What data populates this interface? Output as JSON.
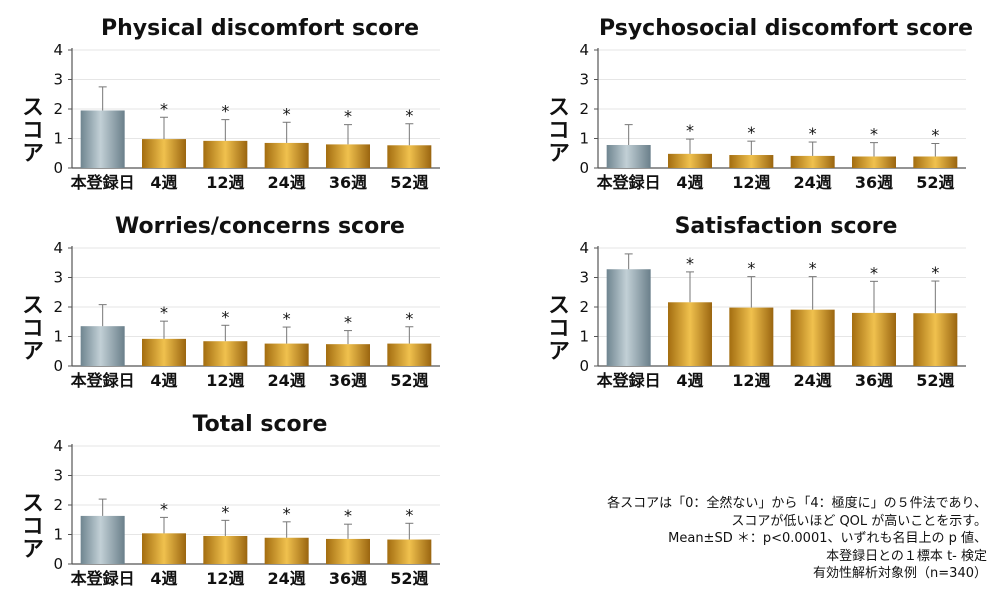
{
  "colors": {
    "baseline_bar": "#90a3ac",
    "followup_bar": "#c8901e",
    "axis": "#555555",
    "grid": "#e6e6e6",
    "error_bar": "#777777"
  },
  "chart_data": [
    {
      "type": "bar",
      "title": "Physical discomfort score",
      "ylabel": "スコア",
      "categories": [
        "本登録日",
        "4週",
        "12週",
        "24週",
        "36週",
        "52週"
      ],
      "values": [
        1.95,
        0.98,
        0.92,
        0.85,
        0.8,
        0.77
      ],
      "error_upper": [
        2.75,
        1.72,
        1.64,
        1.55,
        1.47,
        1.5
      ],
      "significance": [
        "",
        "*",
        "*",
        "*",
        "*",
        "*"
      ],
      "yticks": [
        0,
        1,
        2,
        3,
        4
      ],
      "ylim": [
        0,
        4
      ],
      "grid": true
    },
    {
      "type": "bar",
      "title": "Psychosocial discomfort score",
      "ylabel": "スコア",
      "categories": [
        "本登録日",
        "4週",
        "12週",
        "24週",
        "36週",
        "52週"
      ],
      "values": [
        0.78,
        0.48,
        0.44,
        0.41,
        0.39,
        0.39
      ],
      "error_upper": [
        1.47,
        0.98,
        0.91,
        0.88,
        0.86,
        0.83
      ],
      "significance": [
        "",
        "*",
        "*",
        "*",
        "*",
        "*"
      ],
      "yticks": [
        0,
        1,
        2,
        3,
        4
      ],
      "ylim": [
        0,
        4
      ],
      "grid": true
    },
    {
      "type": "bar",
      "title": "Worries/concerns score",
      "ylabel": "スコア",
      "categories": [
        "本登録日",
        "4週",
        "12週",
        "24週",
        "36週",
        "52週"
      ],
      "values": [
        1.35,
        0.92,
        0.84,
        0.76,
        0.74,
        0.76
      ],
      "error_upper": [
        2.08,
        1.52,
        1.38,
        1.32,
        1.2,
        1.33
      ],
      "significance": [
        "",
        "*",
        "*",
        "*",
        "*",
        "*"
      ],
      "yticks": [
        0,
        1,
        2,
        3,
        4
      ],
      "ylim": [
        0,
        4
      ],
      "grid": true
    },
    {
      "type": "bar",
      "title": "Satisfaction score",
      "ylabel": "スコア",
      "categories": [
        "本登録日",
        "4週",
        "12週",
        "24週",
        "36週",
        "52週"
      ],
      "values": [
        3.28,
        2.16,
        1.98,
        1.91,
        1.8,
        1.79
      ],
      "error_upper": [
        3.8,
        3.19,
        3.03,
        3.03,
        2.87,
        2.88
      ],
      "significance": [
        "",
        "*",
        "*",
        "*",
        "*",
        "*"
      ],
      "yticks": [
        0,
        1,
        2,
        3,
        4
      ],
      "ylim": [
        0,
        4
      ],
      "grid": true
    },
    {
      "type": "bar",
      "title": "Total score",
      "ylabel": "スコア",
      "categories": [
        "本登録日",
        "4週",
        "12週",
        "24週",
        "36週",
        "52週"
      ],
      "values": [
        1.63,
        1.04,
        0.95,
        0.89,
        0.85,
        0.83
      ],
      "error_upper": [
        2.2,
        1.58,
        1.48,
        1.43,
        1.35,
        1.38
      ],
      "significance": [
        "",
        "*",
        "*",
        "*",
        "*",
        "*"
      ],
      "yticks": [
        0,
        1,
        2,
        3,
        4
      ],
      "ylim": [
        0,
        4
      ],
      "grid": true
    }
  ],
  "footnote": {
    "lines": [
      "各スコアは「0：全然ない」から「4：極度に」の５件法であり、",
      "スコアが低いほど QOL が高いことを示す。",
      "Mean±SD ＊：p<0.0001、いずれも名目上の p 値、",
      "本登録日との１標本 t- 検定",
      "有効性解析対象例（n=340）"
    ]
  }
}
